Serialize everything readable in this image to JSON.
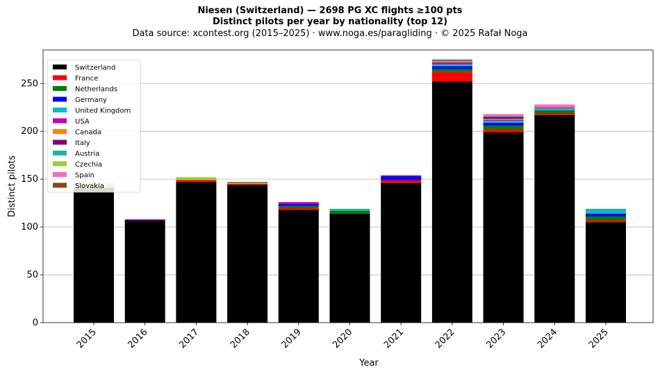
{
  "chart_data": {
    "type": "bar",
    "stacked": true,
    "title_lines": [
      "Niesen (Switzerland)  —  2698 PG XC flights ≥100 pts",
      "Distinct pilots per year by nationality (top 12)"
    ],
    "subtitle": "Data source: xcontest.org (2015–2025)  ·  www.noga.es/paragliding  ·  © 2025 Rafał Noga",
    "xlabel": "Year",
    "ylabel": "Distinct pilots",
    "ylim": [
      0,
      285
    ],
    "yticks": [
      0,
      50,
      100,
      150,
      200,
      250
    ],
    "grid": "y",
    "legend_position": "upper-left",
    "categories": [
      "2015",
      "2016",
      "2017",
      "2018",
      "2019",
      "2020",
      "2021",
      "2022",
      "2023",
      "2024",
      "2025"
    ],
    "series": [
      {
        "name": "Switzerland",
        "color": "#000000",
        "values": [
          141,
          107,
          147,
          144,
          118,
          114,
          146,
          252,
          199,
          217,
          105
        ]
      },
      {
        "name": "France",
        "color": "#ff0000",
        "values": [
          0,
          0,
          2,
          1,
          2,
          0,
          3,
          10,
          3,
          2,
          2
        ]
      },
      {
        "name": "Netherlands",
        "color": "#008000",
        "values": [
          0,
          0,
          0,
          0,
          2,
          3,
          0,
          3,
          4,
          3,
          4
        ]
      },
      {
        "name": "Germany",
        "color": "#0000ff",
        "values": [
          0,
          0,
          0,
          0,
          2,
          0,
          4,
          3,
          3,
          0,
          3
        ]
      },
      {
        "name": "United Kingdom",
        "color": "#00bfbf",
        "values": [
          0,
          0,
          0,
          0,
          0,
          0,
          0,
          2,
          2,
          2,
          2
        ]
      },
      {
        "name": "USA",
        "color": "#bf00bf",
        "values": [
          0,
          1,
          0,
          0,
          2,
          0,
          1,
          2,
          1,
          1,
          0
        ]
      },
      {
        "name": "Canada",
        "color": "#ff7f0e",
        "values": [
          0,
          0,
          0,
          0,
          0,
          0,
          0,
          1,
          1,
          0,
          0
        ]
      },
      {
        "name": "Italy",
        "color": "#800080",
        "values": [
          0,
          0,
          0,
          0,
          0,
          0,
          0,
          0,
          2,
          0,
          0
        ]
      },
      {
        "name": "Austria",
        "color": "#20b2aa",
        "values": [
          0,
          0,
          0,
          0,
          0,
          2,
          0,
          1,
          1,
          0,
          3
        ]
      },
      {
        "name": "Czechia",
        "color": "#9acd32",
        "values": [
          5,
          0,
          3,
          1,
          0,
          0,
          0,
          0,
          0,
          0,
          0
        ]
      },
      {
        "name": "Spain",
        "color": "#ff69b4",
        "values": [
          0,
          0,
          0,
          0,
          0,
          0,
          0,
          0,
          2,
          3,
          0
        ]
      },
      {
        "name": "Slovakia",
        "color": "#8b4513",
        "values": [
          0,
          0,
          0,
          1,
          0,
          0,
          0,
          1,
          0,
          0,
          0
        ]
      }
    ]
  }
}
